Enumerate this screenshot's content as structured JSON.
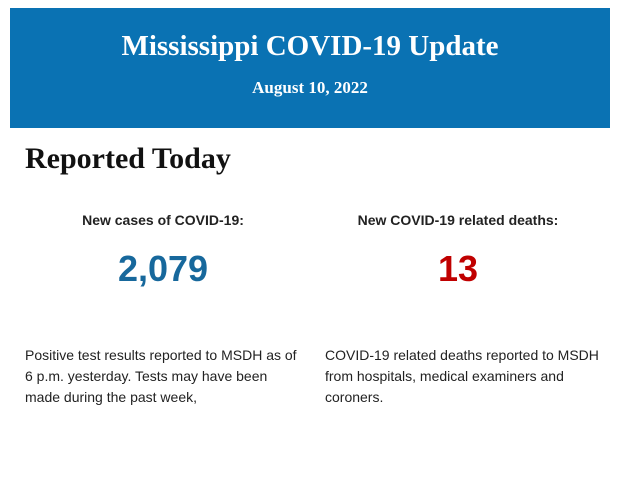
{
  "header": {
    "title": "Mississippi COVID-19 Update",
    "date": "August 10, 2022"
  },
  "section": {
    "heading": "Reported Today",
    "stats": [
      {
        "label": "New cases of COVID-19:",
        "value": "2,079",
        "description": "Positive test results reported to MSDH as of 6 p.m. yesterday. Tests may have been made during the past week,"
      },
      {
        "label": "New COVID-19 related deaths:",
        "value": "13",
        "description": "COVID-19 related deaths reported to MSDH from hospitals, medical examiners and coroners."
      }
    ]
  }
}
